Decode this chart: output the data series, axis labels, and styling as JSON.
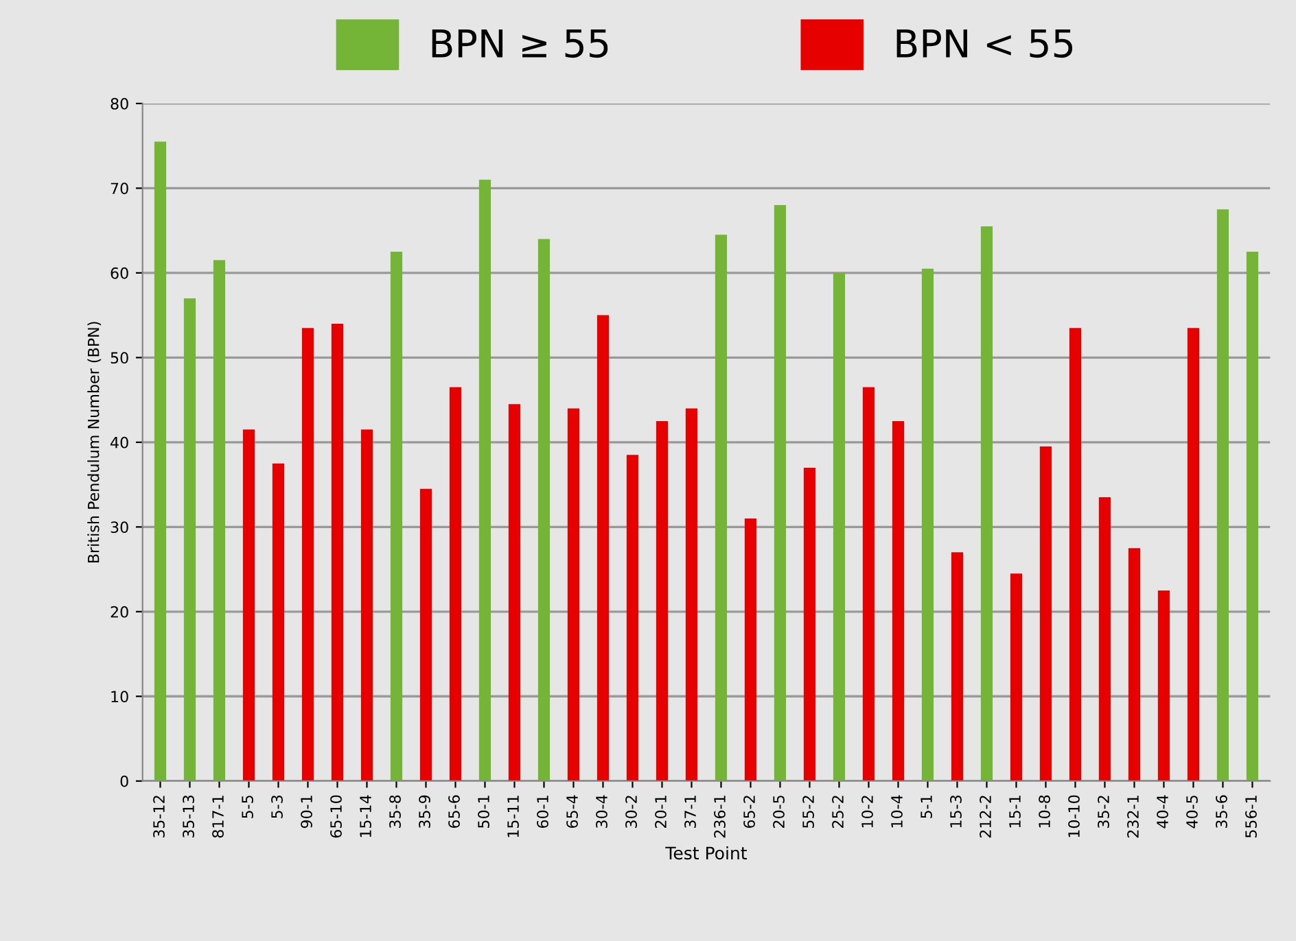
{
  "chart_data": {
    "type": "bar",
    "categories": [
      "35-12",
      "35-13",
      "817-1",
      "5-5",
      "5-3",
      "90-1",
      "65-10",
      "15-14",
      "35-8",
      "35-9",
      "65-6",
      "50-1",
      "15-11",
      "60-1",
      "65-4",
      "30-4",
      "30-2",
      "20-1",
      "37-1",
      "236-1",
      "65-2",
      "20-5",
      "55-2",
      "25-2",
      "10-2",
      "10-4",
      "5-1",
      "15-3",
      "212-2",
      "15-1",
      "10-8",
      "10-10",
      "35-2",
      "232-1",
      "40-4",
      "40-5",
      "35-6",
      "556-1"
    ],
    "series": [
      {
        "name": "BPN ≥ 55",
        "color": "#74b436",
        "values": [
          75.5,
          57,
          61.5,
          null,
          null,
          null,
          null,
          null,
          62.5,
          null,
          null,
          71,
          null,
          64,
          null,
          null,
          null,
          null,
          null,
          64.5,
          null,
          68,
          null,
          60,
          null,
          null,
          60.5,
          null,
          65.5,
          null,
          null,
          null,
          null,
          null,
          null,
          null,
          67.5,
          62.5
        ]
      },
      {
        "name": "BPN < 55",
        "color": "#e60000",
        "values": [
          null,
          null,
          null,
          41.5,
          37.5,
          53.5,
          54,
          41.5,
          null,
          34.5,
          46.5,
          null,
          44.5,
          null,
          44,
          55,
          38.5,
          42.5,
          44,
          null,
          31,
          null,
          37,
          null,
          46.5,
          42.5,
          null,
          27,
          null,
          24.5,
          39.5,
          53.5,
          33.5,
          27.5,
          22.5,
          53.5,
          null,
          null
        ]
      }
    ],
    "xlabel": "Test Point",
    "ylabel": "British Pendulum Number (BPN)",
    "ylim": [
      0,
      80
    ],
    "yticks": [
      0,
      10,
      20,
      30,
      40,
      50,
      60,
      70,
      80
    ],
    "grid": "y",
    "legend": "top"
  }
}
